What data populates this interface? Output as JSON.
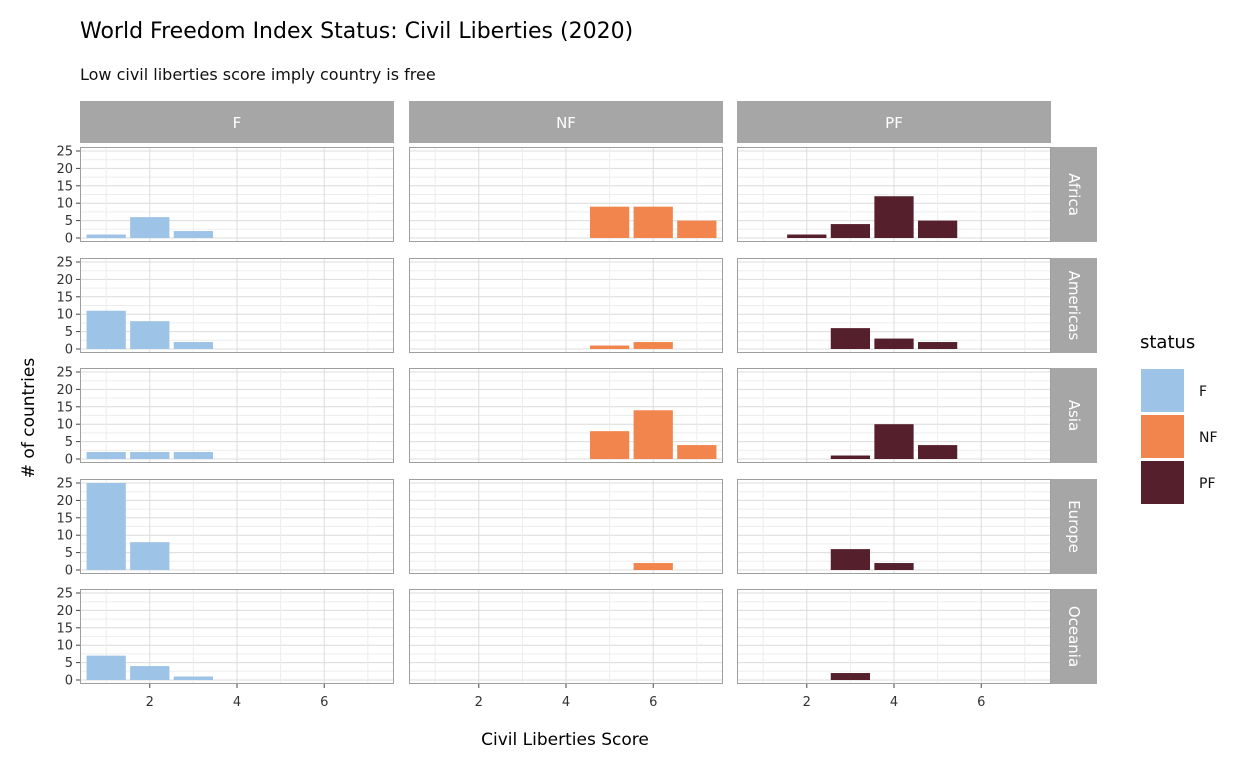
{
  "chart_data": {
    "type": "bar",
    "title": "World Freedom Index Status: Civil Liberties (2020)",
    "subtitle": "Low civil liberties score imply country is free",
    "xlabel": "Civil Liberties Score",
    "ylabel": "# of countries",
    "xlim": [
      0.4,
      7.6
    ],
    "ylim": [
      0,
      25
    ],
    "x_ticks": [
      2,
      4,
      6
    ],
    "y_ticks": [
      0,
      5,
      10,
      15,
      20,
      25
    ],
    "grid": true,
    "legend_position": "right",
    "legend_title": "status",
    "column_facets": [
      "F",
      "NF",
      "PF"
    ],
    "row_facets": [
      "Africa",
      "Americas",
      "Asia",
      "Europe",
      "Oceania"
    ],
    "series": [
      {
        "name": "F",
        "color": "#9DC3E6"
      },
      {
        "name": "NF",
        "color": "#F2844E"
      },
      {
        "name": "PF",
        "color": "#561F2C"
      }
    ],
    "panels": [
      {
        "row": "Africa",
        "col": "F",
        "bars": [
          {
            "x": 1,
            "y": 1
          },
          {
            "x": 2,
            "y": 6
          },
          {
            "x": 3,
            "y": 2
          }
        ]
      },
      {
        "row": "Africa",
        "col": "NF",
        "bars": [
          {
            "x": 5,
            "y": 9
          },
          {
            "x": 6,
            "y": 9
          },
          {
            "x": 7,
            "y": 5
          }
        ]
      },
      {
        "row": "Africa",
        "col": "PF",
        "bars": [
          {
            "x": 2,
            "y": 1
          },
          {
            "x": 3,
            "y": 4
          },
          {
            "x": 4,
            "y": 12
          },
          {
            "x": 5,
            "y": 5
          }
        ]
      },
      {
        "row": "Americas",
        "col": "F",
        "bars": [
          {
            "x": 1,
            "y": 11
          },
          {
            "x": 2,
            "y": 8
          },
          {
            "x": 3,
            "y": 2
          }
        ]
      },
      {
        "row": "Americas",
        "col": "NF",
        "bars": [
          {
            "x": 5,
            "y": 1
          },
          {
            "x": 6,
            "y": 2
          }
        ]
      },
      {
        "row": "Americas",
        "col": "PF",
        "bars": [
          {
            "x": 3,
            "y": 6
          },
          {
            "x": 4,
            "y": 3
          },
          {
            "x": 5,
            "y": 2
          }
        ]
      },
      {
        "row": "Asia",
        "col": "F",
        "bars": [
          {
            "x": 1,
            "y": 2
          },
          {
            "x": 2,
            "y": 2
          },
          {
            "x": 3,
            "y": 2
          }
        ]
      },
      {
        "row": "Asia",
        "col": "NF",
        "bars": [
          {
            "x": 5,
            "y": 8
          },
          {
            "x": 6,
            "y": 14
          },
          {
            "x": 7,
            "y": 4
          }
        ]
      },
      {
        "row": "Asia",
        "col": "PF",
        "bars": [
          {
            "x": 3,
            "y": 1
          },
          {
            "x": 4,
            "y": 10
          },
          {
            "x": 5,
            "y": 4
          }
        ]
      },
      {
        "row": "Europe",
        "col": "F",
        "bars": [
          {
            "x": 1,
            "y": 25
          },
          {
            "x": 2,
            "y": 8
          }
        ]
      },
      {
        "row": "Europe",
        "col": "NF",
        "bars": [
          {
            "x": 6,
            "y": 2
          }
        ]
      },
      {
        "row": "Europe",
        "col": "PF",
        "bars": [
          {
            "x": 3,
            "y": 6
          },
          {
            "x": 4,
            "y": 2
          }
        ]
      },
      {
        "row": "Oceania",
        "col": "F",
        "bars": [
          {
            "x": 1,
            "y": 7
          },
          {
            "x": 2,
            "y": 4
          },
          {
            "x": 3,
            "y": 1
          }
        ]
      },
      {
        "row": "Oceania",
        "col": "NF",
        "bars": []
      },
      {
        "row": "Oceania",
        "col": "PF",
        "bars": [
          {
            "x": 3,
            "y": 2
          }
        ]
      }
    ]
  }
}
